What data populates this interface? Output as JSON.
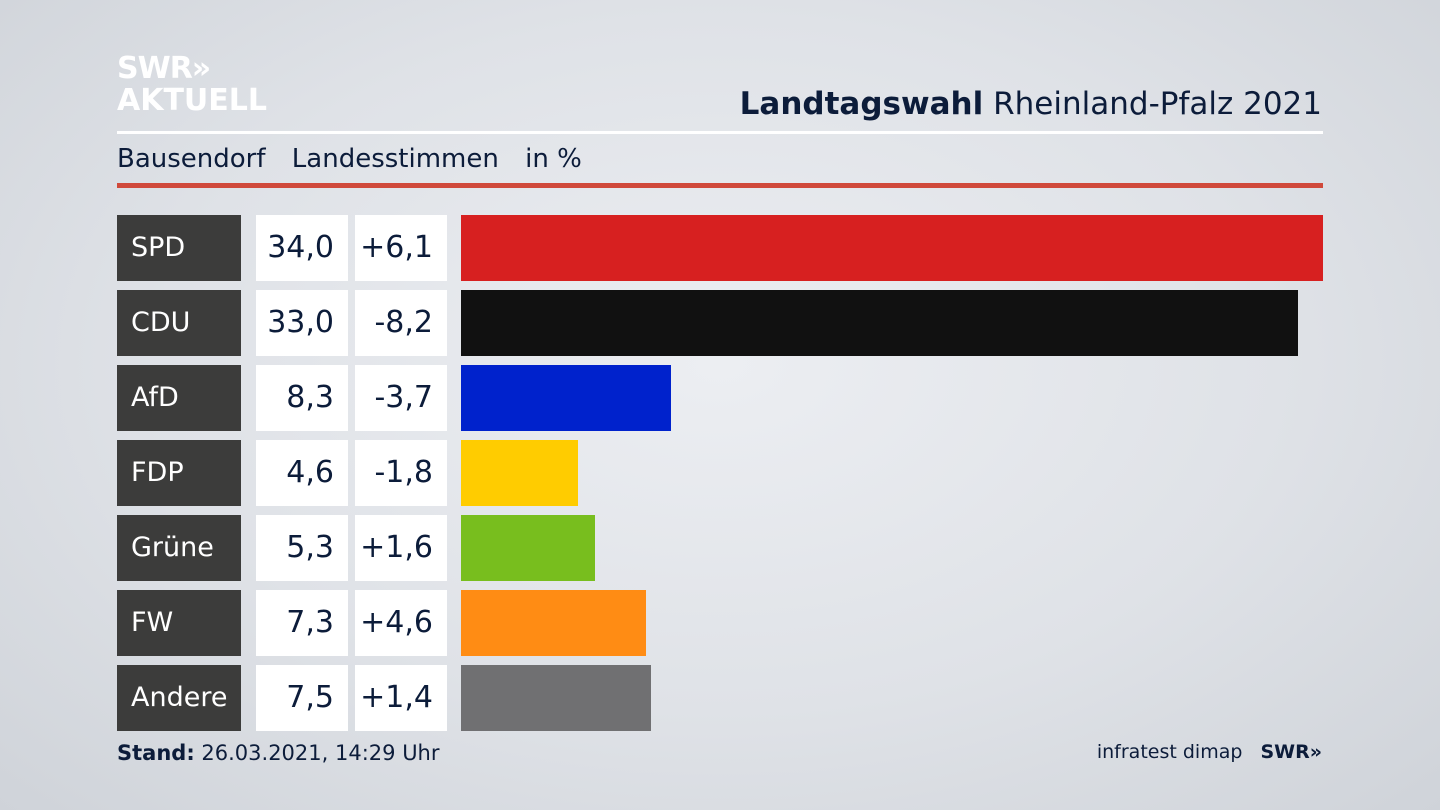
{
  "header": {
    "logo_line1": "SWR»",
    "logo_line2": "AKTUELL",
    "title_bold": "Landtagswahl",
    "title_rest": "Rheinland-Pfalz 2021"
  },
  "subtitle": {
    "place": "Bausendorf",
    "type": "Landesstimmen",
    "unit": "in %"
  },
  "chart_data": {
    "type": "bar",
    "orientation": "horizontal",
    "title": "Landtagswahl Rheinland-Pfalz 2021",
    "subtitle": "Bausendorf Landesstimmen in %",
    "categories": [
      "SPD",
      "CDU",
      "AfD",
      "FDP",
      "Grüne",
      "FW",
      "Andere"
    ],
    "values": [
      34.0,
      33.0,
      8.3,
      4.6,
      5.3,
      7.3,
      7.5
    ],
    "value_labels": [
      "34,0",
      "33,0",
      "8,3",
      "4,6",
      "5,3",
      "7,3",
      "7,5"
    ],
    "diff_labels": [
      "+6,1",
      "-8,2",
      "-3,7",
      "-1,8",
      "+1,6",
      "+4,6",
      "+1,4"
    ],
    "colors": [
      "#d72020",
      "#111111",
      "#0022cc",
      "#ffcc00",
      "#78be1e",
      "#ff8c14",
      "#707072"
    ],
    "xlim": [
      0,
      34.0
    ]
  },
  "footer": {
    "stand_label": "Stand:",
    "stand_value": "26.03.2021, 14:29 Uhr",
    "source": "infratest dimap",
    "brand": "SWR»"
  }
}
